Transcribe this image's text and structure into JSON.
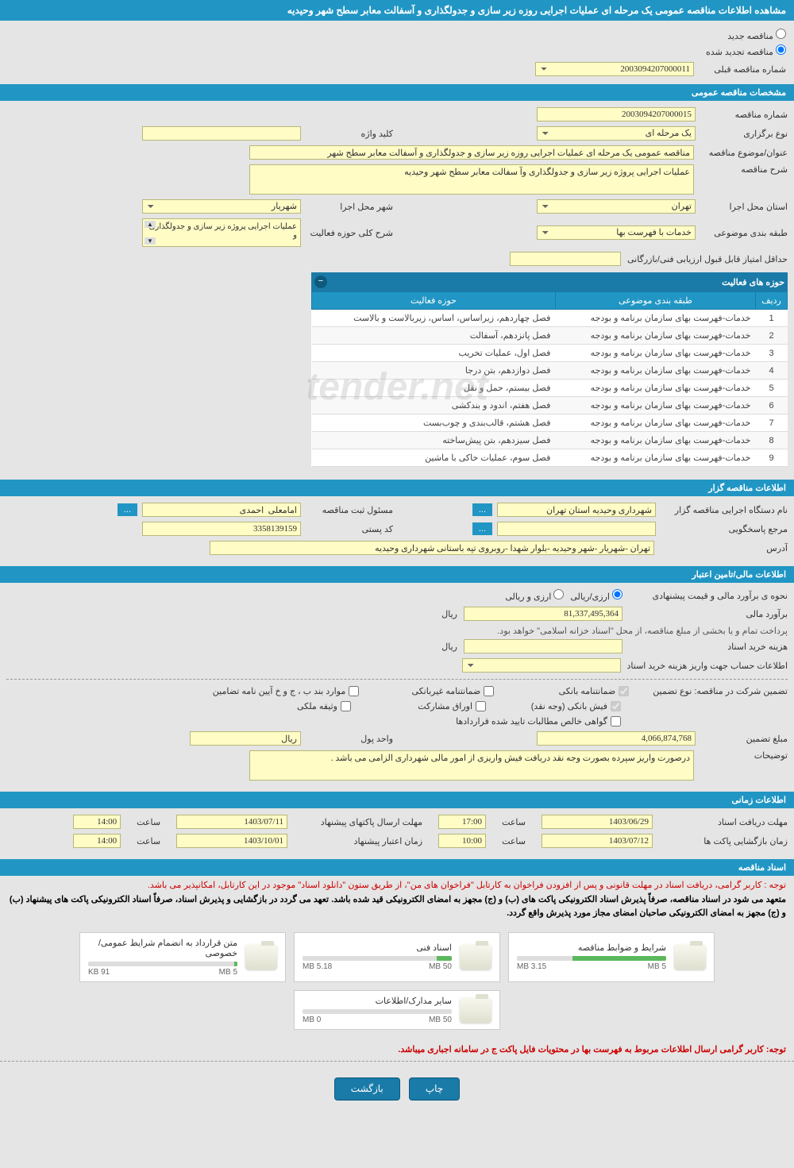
{
  "page": {
    "title": "مشاهده اطلاعات مناقصه عمومی یک مرحله ای عملیات اجرایی روزه زیر سازی و جدولگذاری و آسفالت معابر سطح شهر وحیدیه"
  },
  "radios": {
    "new_tender": "مناقصه جدید",
    "renew_tender": "مناقصه تجدید شده",
    "prev_tender_label": "شماره مناقصه قبلی",
    "prev_tender_value": "2003094207000011"
  },
  "general": {
    "header": "مشخصات مناقصه عمومی",
    "tender_no_label": "شماره مناقصه",
    "tender_no_value": "2003094207000015",
    "type_label": "نوع برگزاری",
    "type_value": "یک مرحله ای",
    "keyword_label": "کلید واژه",
    "keyword_value": "",
    "subject_label": "عنوان/موضوع مناقصه",
    "subject_value": "مناقصه عمومی یک مرحله ای عملیات اجرایی روزه زیر سازی و جدولگذاری و آسفالت معابر سطح شهر",
    "description_label": "شرح مناقصه",
    "description_value": "عملیات اجرایی پروژه زیر سازی و جدولگذاری وآ سفالت معابر سطح شهر وحیدیه",
    "province_label": "استان محل اجرا",
    "province_value": "تهران",
    "city_label": "شهر محل اجرا",
    "city_value": "شهریار",
    "category_label": "طبقه بندی موضوعی",
    "category_value": "خدمات با فهرست بها",
    "activity_scope_label": "شرح کلی حوزه فعالیت",
    "activity_scope_value": "عملیات اجرایی پروژه زیر سازی و جدولگذاری و",
    "min_score_label": "حداقل امتیاز قابل قبول ارزیابی فنی/بازرگانی",
    "min_score_value": ""
  },
  "activity_table": {
    "header": "حوزه های فعالیت",
    "columns": {
      "row": "ردیف",
      "cat": "طبقه بندی موضوعی",
      "scope": "حوزه فعالیت"
    },
    "rows": [
      {
        "n": "1",
        "cat": "خدمات-فهرست بهای سازمان برنامه و بودجه",
        "scope": "فصل چهاردهم، زیراساس، اساس، زیربالاست و بالاست"
      },
      {
        "n": "2",
        "cat": "خدمات-فهرست بهای سازمان برنامه و بودجه",
        "scope": "فصل پانزدهم، آسفالت"
      },
      {
        "n": "3",
        "cat": "خدمات-فهرست بهای سازمان برنامه و بودجه",
        "scope": "فصل اول، عملیات تخریب"
      },
      {
        "n": "4",
        "cat": "خدمات-فهرست بهای سازمان برنامه و بودجه",
        "scope": "فصل دوازدهم، بتن درجا"
      },
      {
        "n": "5",
        "cat": "خدمات-فهرست بهای سازمان برنامه و بودجه",
        "scope": "فصل بیستم، حمل و نقل"
      },
      {
        "n": "6",
        "cat": "خدمات-فهرست بهای سازمان برنامه و بودجه",
        "scope": "فصل هفتم، اندود و بندکشی"
      },
      {
        "n": "7",
        "cat": "خدمات-فهرست بهای سازمان برنامه و بودجه",
        "scope": "فصل هشتم، قالب‌بندی و چوب‌بست"
      },
      {
        "n": "8",
        "cat": "خدمات-فهرست بهای سازمان برنامه و بودجه",
        "scope": "فصل سیزدهم، بتن پیش‌ساخته"
      },
      {
        "n": "9",
        "cat": "خدمات-فهرست بهای سازمان برنامه و بودجه",
        "scope": "فصل سوم، عملیات خاکی با ماشین"
      }
    ]
  },
  "organizer": {
    "header": "اطلاعات مناقصه گزار",
    "org_label": "نام دستگاه اجرایی مناقصه گزار",
    "org_value": "شهرداری وحیدیه استان تهران",
    "registrar_label": "مسئول ثبت مناقصه",
    "registrar_value": "امامعلی  احمدی",
    "responder_label": "مرجع پاسخگویی",
    "responder_value": "",
    "postal_label": "کد پستی",
    "postal_value": "3358139159",
    "address_label": "آدرس",
    "address_value": "تهران -شهریار -شهر وحیدیه -بلوار شهدا -روبروی تپه باستانی شهرداری وحیدیه",
    "dots": "..."
  },
  "financial": {
    "header": "اطلاعات مالی/تامین اعتبار",
    "estimate_method_label": "نحوه ی برآورد مالی و قیمت پیشنهادی",
    "currency_option1": "ارزی/ریالی",
    "currency_option2": "ارزی و ریالی",
    "estimate_label": "برآورد مالی",
    "estimate_value": "81,337,495,364",
    "rial": "ریال",
    "payment_note": "پرداخت تمام و یا بخشی از مبلغ مناقصه، از محل \"اسناد خزانه اسلامی\" خواهد بود.",
    "doc_cost_label": "هزینه خرید اسناد",
    "doc_cost_value": "",
    "deposit_account_label": "اطلاعات حساب جهت واریز هزینه خرید اسناد",
    "deposit_account_value": "",
    "guarantee_label": "تضمین شرکت در مناقصه:   نوع تضمین",
    "cb1": "ضمانتنامه بانکی",
    "cb2": "ضمانتنامه غیربانکی",
    "cb3": "موارد بند ب ، ج و خ آیین نامه تضامین",
    "cb4": "فیش بانکی (وجه نقد)",
    "cb5": "اوراق مشارکت",
    "cb6": "وثیقه ملکی",
    "cb7": "گواهی خالص مطالبات تایید شده قراردادها",
    "guarantee_amount_label": "مبلغ تضمین",
    "guarantee_amount_value": "4,066,874,768",
    "unit_label": "واحد پول",
    "unit_value": "ریال",
    "notes_label": "توضیحات",
    "notes_value": "درصورت واریز سپرده بصورت وجه نقد دریافت فیش واریزی از امور مالی شهرداری الزامی می باشد ."
  },
  "schedule": {
    "header": "اطلاعات زمانی",
    "deadline_receive_label": "مهلت دریافت اسناد",
    "deadline_receive_date": "1403/06/29",
    "deadline_receive_time": "17:00",
    "deadline_submit_label": "مهلت ارسال پاکتهای پیشنهاد",
    "deadline_submit_date": "1403/07/11",
    "deadline_submit_time": "14:00",
    "opening_label": "زمان بازگشایی پاکت ها",
    "opening_date": "1403/07/12",
    "opening_time": "10:00",
    "validity_label": "زمان اعتبار پیشنهاد",
    "validity_date": "1403/10/01",
    "validity_time": "14:00",
    "time_label": "ساعت"
  },
  "documents": {
    "header": "اسناد مناقصه",
    "notice1": "توجه : کاربر گرامی، دریافت اسناد در مهلت قانونی و پس از افزودن فراخوان به کارتابل \"فراخوان های من\"، از طریق ستون \"دانلود اسناد\" موجود در این کارتابل، امکانپذیر می باشد.",
    "notice2": "متعهد می شود در اسناد مناقصه، صرفاً پذیرش اسناد الکترونیکی پاکت های (ب) و (ج) مجهز به امضای الکترونیکی قید شده باشد. تعهد می گردد در بازگشایی و پذیرش اسناد، صرفاً اسناد الکترونیکی پاکت های پیشنهاد (ب) و (ج) مجهز به امضای الکترونیکی صاحبان امضای مجاز مورد پذیرش واقع گردد.",
    "files": [
      {
        "name": "شرایط و ضوابط مناقصه",
        "max": "5 MB",
        "used": "3.15 MB",
        "pct": 63
      },
      {
        "name": "اسناد فنی",
        "max": "50 MB",
        "used": "5.18 MB",
        "pct": 10
      },
      {
        "name": "متن قرارداد به انضمام شرایط عمومی/خصوصی",
        "max": "5 MB",
        "used": "91 KB",
        "pct": 2
      },
      {
        "name": "سایر مدارک/اطلاعات",
        "max": "50 MB",
        "used": "0 MB",
        "pct": 0
      }
    ],
    "bottom_notice": "توجه: کاربر گرامی ارسال اطلاعات مربوط به فهرست بها در محتویات فایل پاکت ج در سامانه اجباری میباشد."
  },
  "actions": {
    "print": "چاپ",
    "back": "بازگشت"
  },
  "watermark": "tender.net"
}
